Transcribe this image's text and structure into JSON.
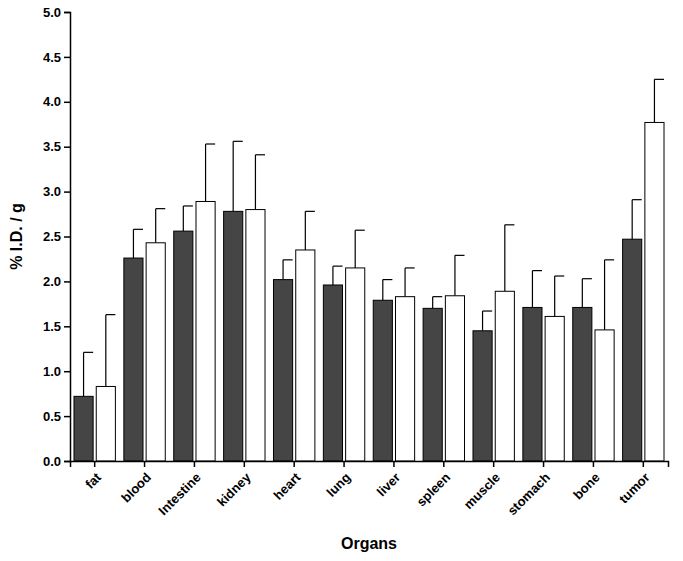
{
  "chart_data": {
    "type": "bar",
    "x_label": "Organs",
    "y_label": "% I.D. / g",
    "categories": [
      "fat",
      "blood",
      "Intestine",
      "kidney",
      "heart",
      "lung",
      "liver",
      "spleen",
      "muscle",
      "stomach",
      "bone",
      "tumor"
    ],
    "series": [
      {
        "color": "#454545",
        "values": [
          0.72,
          2.26,
          2.56,
          2.78,
          2.02,
          1.96,
          1.79,
          1.7,
          1.45,
          1.71,
          1.71,
          2.47
        ],
        "errors": [
          0.49,
          0.32,
          0.28,
          0.78,
          0.22,
          0.21,
          0.23,
          0.13,
          0.22,
          0.41,
          0.32,
          0.44
        ]
      },
      {
        "color": "#ffffff",
        "values": [
          0.83,
          2.43,
          2.89,
          2.8,
          2.35,
          2.15,
          1.83,
          1.84,
          1.89,
          1.61,
          1.46,
          3.77
        ],
        "errors": [
          0.8,
          0.38,
          0.64,
          0.61,
          0.43,
          0.42,
          0.32,
          0.45,
          0.74,
          0.45,
          0.78,
          0.48
        ]
      }
    ],
    "ylim": [
      0,
      5
    ],
    "yticks": [
      {
        "value": 0,
        "label": "0.0"
      },
      0.5,
      {
        "value": 1,
        "label": "1.0"
      },
      1.5,
      {
        "value": 2,
        "label": "2.0"
      },
      2.5,
      {
        "value": 3,
        "label": "3.0"
      },
      3.5,
      {
        "value": 4,
        "label": "4.0"
      },
      4.5,
      {
        "value": 5,
        "label": "5.0"
      }
    ],
    "grid": false
  }
}
